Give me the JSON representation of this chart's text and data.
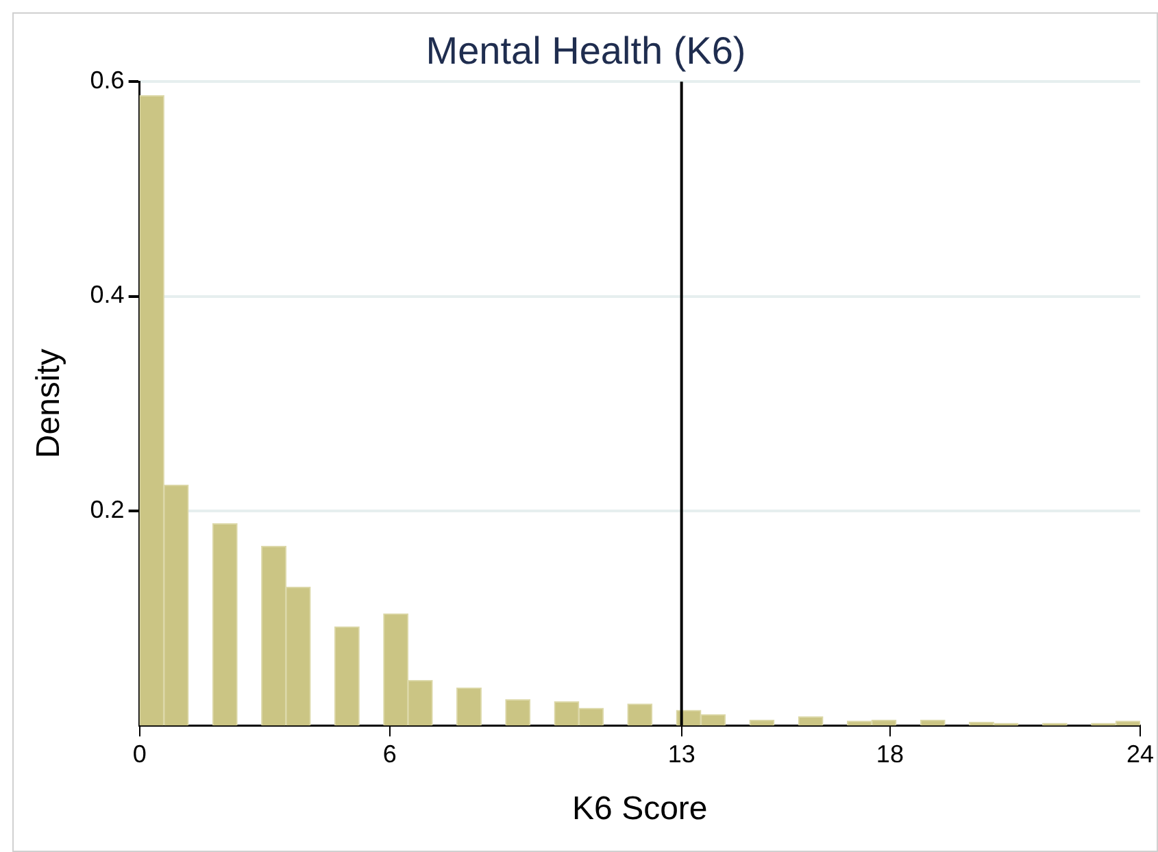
{
  "chart_data": {
    "type": "histogram",
    "title": "Mental Health (K6)",
    "xlabel": "K6 Score",
    "ylabel": "Density",
    "bins": [
      0,
      0.585,
      1.171,
      1.756,
      2.341,
      2.927,
      3.512,
      4.098,
      4.683,
      5.268,
      5.854,
      6.439,
      7.024,
      7.61,
      8.195,
      8.78,
      9.366,
      9.951,
      10.537,
      11.122,
      11.707,
      12.293,
      12.878,
      13.463,
      14.049,
      14.634,
      15.22,
      15.805,
      16.39,
      16.976,
      17.561,
      18.146,
      18.732,
      19.317,
      19.902,
      20.488,
      21.073,
      21.659,
      22.244,
      22.829,
      23.415,
      24
    ],
    "values": [
      0.587,
      0.224,
      0,
      0.188,
      0,
      0.167,
      0.129,
      0,
      0.092,
      0,
      0.104,
      0.042,
      0,
      0.035,
      0,
      0.024,
      0,
      0.022,
      0.016,
      0,
      0.02,
      0,
      0.014,
      0.01,
      0,
      0.005,
      0,
      0.008,
      0,
      0.004,
      0.005,
      0,
      0.005,
      0,
      0.003,
      0.002,
      0,
      0.002,
      0,
      0.002,
      0.004
    ],
    "color": "#cbc584",
    "xlim": [
      0,
      24
    ],
    "xticks": [
      0,
      6,
      13,
      18,
      24
    ],
    "ylim": [
      0,
      0.6
    ],
    "yticks": [
      0.2,
      0.4,
      0.6
    ],
    "ref_lines": [
      {
        "axis": "x",
        "value": 13,
        "color": "#000000"
      }
    ],
    "grid": "y",
    "legend": false
  }
}
